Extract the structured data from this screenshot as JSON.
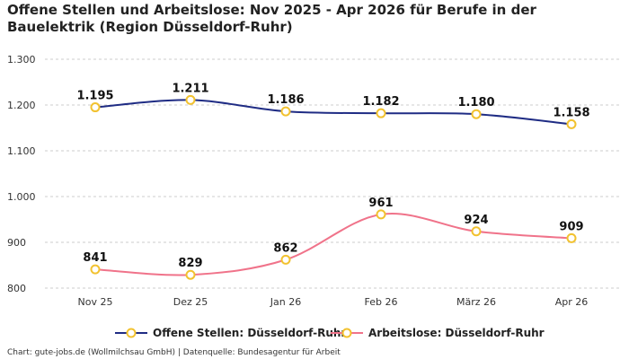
{
  "title": "Offene Stellen und Arbeitslose: Nov 2025 - Apr 2026 für Berufe in der Bauelektrik (Region Düsseldorf-Ruhr)",
  "footer": "Chart: gute-jobs.de (Wollmilchsau GmbH) | Datenquelle: Bundesagentur für Arbeit",
  "chart_data": {
    "type": "line",
    "title": "Offene Stellen und Arbeitslose: Nov 2025 - Apr 2026 für Berufe in der Bauelektrik (Region Düsseldorf-Ruhr)",
    "categories": [
      "Nov 25",
      "Dez 25",
      "Jan 26",
      "Feb 26",
      "März 26",
      "Apr 26"
    ],
    "ylim": [
      800,
      1300
    ],
    "yticks": [
      800,
      900,
      1000,
      1100,
      1200,
      1300
    ],
    "ytick_labels": [
      "800",
      "900",
      "1.000",
      "1.100",
      "1.200",
      "1.300"
    ],
    "grid": true,
    "legend_position": "bottom",
    "series": [
      {
        "name": "Offene Stellen: Düsseldorf-Ruhr",
        "values": [
          1195,
          1211,
          1186,
          1182,
          1180,
          1158
        ],
        "labels": [
          "1.195",
          "1.211",
          "1.186",
          "1.182",
          "1.180",
          "1.158"
        ],
        "color": "#1f2c84",
        "marker_color": "#f2c230"
      },
      {
        "name": "Arbeitslose: Düsseldorf-Ruhr",
        "values": [
          841,
          829,
          862,
          961,
          924,
          909
        ],
        "labels": [
          "841",
          "829",
          "862",
          "961",
          "924",
          "909"
        ],
        "color": "#f0738a",
        "marker_color": "#f2c230"
      }
    ]
  }
}
